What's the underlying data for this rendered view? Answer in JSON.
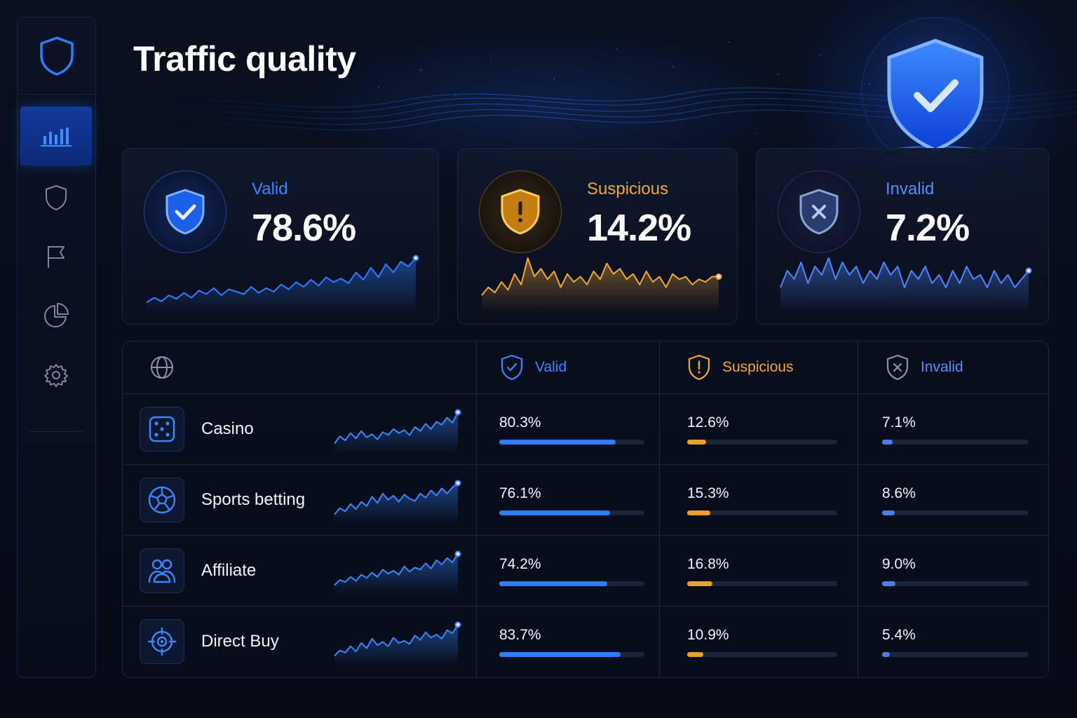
{
  "page": {
    "title": "Traffic quality"
  },
  "sidebar": {
    "logo_icon": "shield-icon",
    "items": [
      {
        "icon": "bar-chart-icon",
        "active": true
      },
      {
        "icon": "shield-icon",
        "active": false
      },
      {
        "icon": "flag-icon",
        "active": false
      },
      {
        "icon": "pie-chart-icon",
        "active": false
      },
      {
        "icon": "gear-icon",
        "active": false
      }
    ]
  },
  "summary": [
    {
      "label": "Valid",
      "value": "78.6%",
      "icon": "shield-check-icon",
      "color": "#2f7dff",
      "trend": [
        22,
        30,
        24,
        34,
        28,
        38,
        30,
        42,
        36,
        46,
        34,
        44,
        40,
        36,
        48,
        38,
        46,
        40,
        52,
        44,
        56,
        48,
        60,
        50,
        64,
        56,
        62,
        54,
        72,
        60,
        80,
        64,
        86,
        72,
        90,
        82,
        96
      ]
    },
    {
      "label": "Suspicious",
      "value": "14.2%",
      "icon": "shield-alert-icon",
      "color": "#f0a834",
      "trend": [
        30,
        36,
        32,
        40,
        34,
        46,
        38,
        58,
        44,
        50,
        42,
        48,
        36,
        46,
        40,
        44,
        38,
        48,
        42,
        54,
        46,
        50,
        42,
        46,
        38,
        48,
        40,
        44,
        36,
        46,
        42,
        44,
        38,
        42,
        40,
        44,
        44
      ]
    },
    {
      "label": "Invalid",
      "value": "7.2%",
      "icon": "shield-x-icon",
      "color": "#4f86ff",
      "trend": [
        40,
        48,
        44,
        52,
        42,
        50,
        46,
        54,
        44,
        52,
        46,
        50,
        42,
        48,
        44,
        52,
        46,
        50,
        40,
        48,
        44,
        50,
        42,
        46,
        40,
        48,
        42,
        50,
        44,
        46,
        40,
        48,
        42,
        46,
        40,
        44,
        48
      ]
    }
  ],
  "table": {
    "header_icon": "globe-icon",
    "columns": [
      {
        "label": "Valid",
        "icon": "shield-check-icon",
        "color": "#3a86ff"
      },
      {
        "label": "Suspicious",
        "icon": "shield-alert-icon",
        "color": "#f0a834"
      },
      {
        "label": "Invalid",
        "icon": "shield-x-icon",
        "color": "#5a8cff"
      }
    ],
    "rows": [
      {
        "name": "Casino",
        "icon": "dice-icon",
        "valid": "80.3%",
        "suspicious": "12.6%",
        "invalid": "7.1%",
        "valid_level": 0.803,
        "suspicious_level": 0.126,
        "invalid_level": 0.071,
        "trend": [
          20,
          34,
          26,
          40,
          30,
          44,
          32,
          38,
          28,
          42,
          36,
          48,
          40,
          46,
          36,
          52,
          44,
          58,
          48,
          62,
          56,
          70,
          60,
          80
        ]
      },
      {
        "name": "Sports betting",
        "icon": "soccer-ball-icon",
        "valid": "76.1%",
        "suspicious": "15.3%",
        "invalid": "8.6%",
        "valid_level": 0.761,
        "suspicious_level": 0.153,
        "invalid_level": 0.086,
        "trend": [
          22,
          34,
          28,
          42,
          32,
          46,
          38,
          56,
          44,
          62,
          50,
          58,
          46,
          60,
          52,
          48,
          62,
          54,
          68,
          58,
          72,
          62,
          74,
          82
        ]
      },
      {
        "name": "Affiliate",
        "icon": "users-icon",
        "valid": "74.2%",
        "suspicious": "16.8%",
        "invalid": "9.0%",
        "valid_level": 0.742,
        "suspicious_level": 0.168,
        "invalid_level": 0.09,
        "trend": [
          20,
          30,
          26,
          36,
          28,
          40,
          34,
          44,
          36,
          50,
          42,
          48,
          40,
          56,
          46,
          54,
          50,
          62,
          52,
          68,
          60,
          72,
          64,
          80
        ]
      },
      {
        "name": "Direct Buy",
        "icon": "target-icon",
        "valid": "83.7%",
        "suspicious": "10.9%",
        "invalid": "5.4%",
        "valid_level": 0.837,
        "suspicious_level": 0.109,
        "invalid_level": 0.054,
        "trend": [
          22,
          32,
          28,
          40,
          30,
          46,
          36,
          54,
          42,
          48,
          40,
          56,
          46,
          50,
          44,
          60,
          52,
          66,
          56,
          62,
          54,
          70,
          64,
          80
        ]
      }
    ]
  }
}
